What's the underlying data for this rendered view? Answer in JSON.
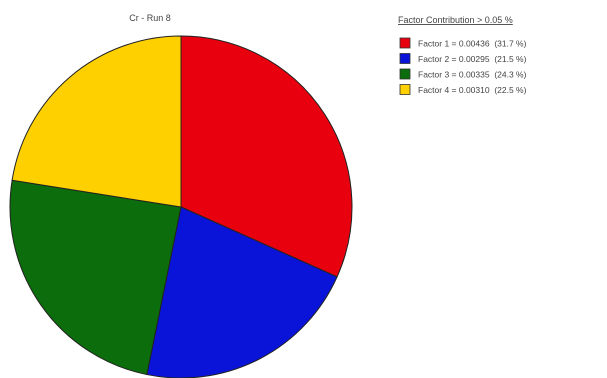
{
  "chart_data": {
    "type": "pie",
    "title": "Cr - Run 8",
    "legend_title": "Factor Contribution > 0.05 %",
    "legend_position": "top-right",
    "slices": [
      {
        "name": "Factor 1",
        "value": 0.00436,
        "percent": 31.7,
        "color": "#e8000f",
        "label": "Factor 1 = 0.00436  (31.7 %)"
      },
      {
        "name": "Factor 2",
        "value": 0.00295,
        "percent": 21.5,
        "color": "#0a14d8",
        "label": "Factor 2 = 0.00295  (21.5 %)"
      },
      {
        "name": "Factor 3",
        "value": 0.00335,
        "percent": 24.3,
        "color": "#0b6d0b",
        "label": "Factor 3 = 0.00335  (24.3 %)"
      },
      {
        "name": "Factor 4",
        "value": 0.0031,
        "percent": 22.5,
        "color": "#ffd000",
        "label": "Factor 4 = 0.00310  (22.5 %)"
      }
    ]
  }
}
